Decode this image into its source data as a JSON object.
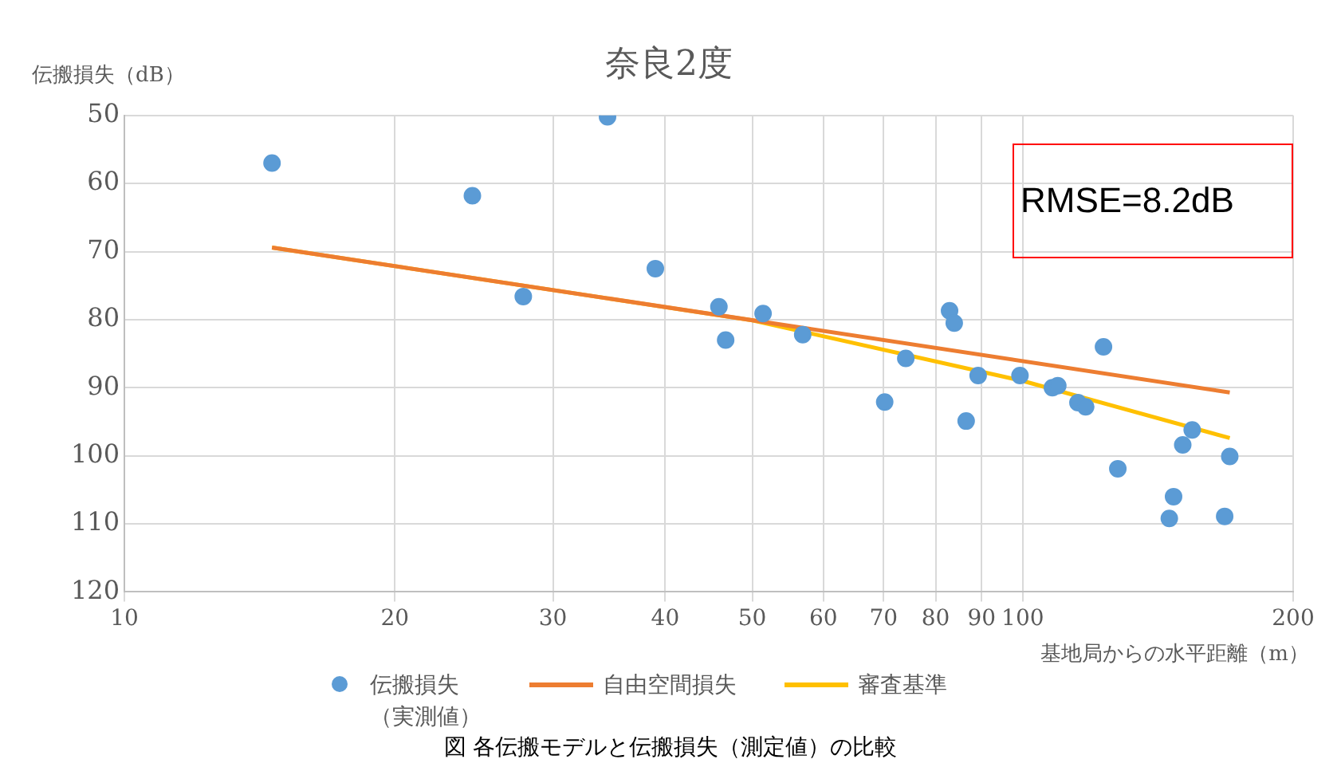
{
  "chart_data": {
    "type": "scatter",
    "title": "奈良2度",
    "xlabel": "基地局からの水平距離（m）",
    "ylabel": "伝搬損失（dB）",
    "log": "x",
    "xlim": [
      10,
      200
    ],
    "xticks": [
      10,
      20,
      30,
      40,
      50,
      60,
      70,
      80,
      90,
      100,
      200
    ],
    "ylim": [
      120,
      50
    ],
    "yticks": [
      50,
      60,
      70,
      80,
      90,
      100,
      110,
      120
    ],
    "grid": true,
    "legend": "bottom",
    "annotations": [
      "RMSE=8.2dB",
      "図 各伝搬モデルと伝搬損失（測定値）の比較"
    ],
    "series": [
      {
        "name": "伝搬損失（実測値）",
        "marker": "circle",
        "color": "#5b9bd5",
        "x": [
          14.6,
          24.4,
          27.8,
          34.5,
          39.0,
          45.9,
          46.7,
          51.4,
          56.9,
          70.2,
          74.1,
          82.9,
          83.9,
          86.5,
          89.2,
          99.3,
          107.9,
          109.4,
          115.2,
          117.5,
          123,
          127.6,
          145.6,
          147.2,
          150.7,
          154.4,
          167.8,
          170
        ],
        "values": [
          57.0,
          61.8,
          76.6,
          50.2,
          72.5,
          78.1,
          83.0,
          79.1,
          82.2,
          92.1,
          85.7,
          78.7,
          80.5,
          94.9,
          88.2,
          88.2,
          90.0,
          89.7,
          92.2,
          92.8,
          84.0,
          101.9,
          109.2,
          106.0,
          98.4,
          96.2,
          108.9,
          100.1
        ]
      },
      {
        "name": "自由空間損失",
        "type": "line",
        "color": "#ed7d31",
        "x": [
          14.6,
          170
        ],
        "values": [
          69.4,
          90.7
        ]
      },
      {
        "name": "審査基準",
        "type": "line",
        "color": "#ffc000",
        "x": [
          14.6,
          50,
          100,
          170
        ],
        "values": [
          69.4,
          80.1,
          89.0,
          97.4
        ]
      }
    ]
  }
}
